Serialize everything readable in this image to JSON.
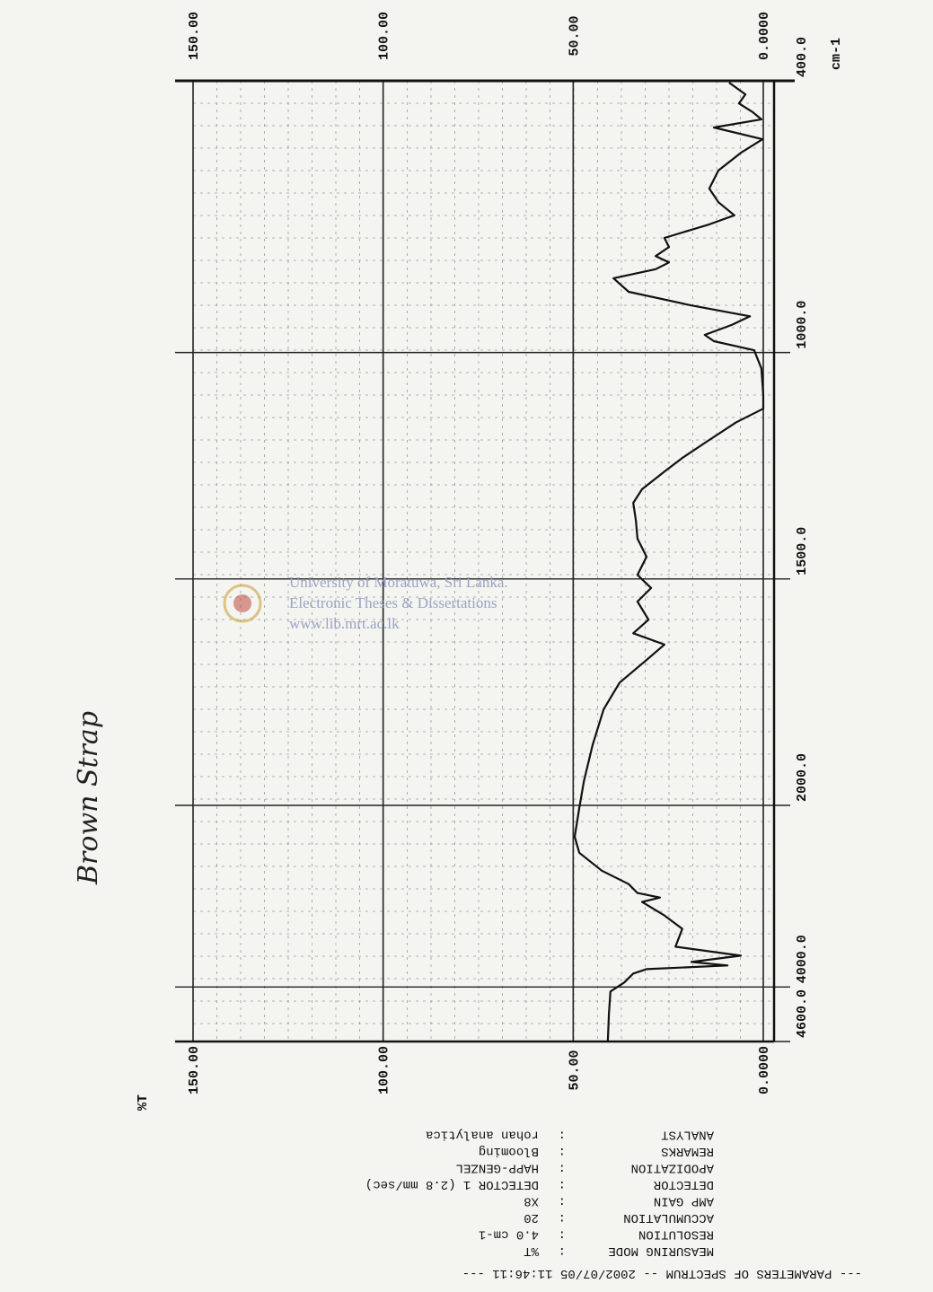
{
  "chart_data": {
    "type": "line",
    "handwritten_title": "Brown Strap",
    "x_unit": "cm-1",
    "y_label": "%T",
    "xlim": [
      400,
      4600
    ],
    "x_break": 2000,
    "ylim": [
      0,
      150
    ],
    "xticks": [
      {
        "value": 400,
        "label": "400.0"
      },
      {
        "value": 1000,
        "label": "1000.0"
      },
      {
        "value": 1500,
        "label": "1500.0"
      },
      {
        "value": 2000,
        "label": "2000.0"
      },
      {
        "value": 4000,
        "label": "4000.0"
      },
      {
        "value": 4600,
        "label": "4600.0"
      }
    ],
    "yticks": [
      {
        "value": 150,
        "label": "150.00"
      },
      {
        "value": 100,
        "label": "100.00"
      },
      {
        "value": 50,
        "label": "50.00"
      },
      {
        "value": 0,
        "label": "0.0000"
      }
    ],
    "grid": true,
    "color": "#111111",
    "x": [
      404,
      430,
      450,
      469,
      485,
      503,
      529,
      559,
      598,
      638,
      668,
      697,
      717,
      747,
      767,
      787,
      801,
      816,
      836,
      866,
      896,
      920,
      939,
      961,
      975,
      995,
      1035,
      1094,
      1124,
      1154,
      1193,
      1233,
      1263,
      1302,
      1332,
      1372,
      1411,
      1451,
      1491,
      1520,
      1550,
      1590,
      1620,
      1645,
      1679,
      1729,
      1788,
      1867,
      1947,
      2030,
      2345,
      2522,
      2719,
      2867,
      2965,
      3015,
      3064,
      3212,
      3359,
      3556,
      3655,
      3724,
      3763,
      3803,
      3852,
      3950,
      4049,
      4295,
      4591
    ],
    "values": [
      9.0,
      4.7,
      6.4,
      2.8,
      0.5,
      13.0,
      0.2,
      5.9,
      11.8,
      14.2,
      11.8,
      7.6,
      14.2,
      26.0,
      24.8,
      28.3,
      24.8,
      28.3,
      39.4,
      35.4,
      18.9,
      3.5,
      8.3,
      15.4,
      13.0,
      2.4,
      0.5,
      0.0,
      0.0,
      7.1,
      14.2,
      21.3,
      26.0,
      31.9,
      34.2,
      33.5,
      33.1,
      30.7,
      33.1,
      29.5,
      33.1,
      30.2,
      34.2,
      26.0,
      30.7,
      37.8,
      42.0,
      44.9,
      47.2,
      48.4,
      49.6,
      48.4,
      42.5,
      35.4,
      33.1,
      27.2,
      31.9,
      26.0,
      21.3,
      23.1,
      5.9,
      18.9,
      9.4,
      30.7,
      34.2,
      36.6,
      40.2,
      40.6,
      40.9
    ]
  },
  "watermark": {
    "line1": "University of Moratuwa, Sri Lanka.",
    "line2": "Electronic Theses & Dissertations",
    "line3": "www.lib.mrt.ac.lk"
  },
  "parameters": {
    "header": "--- PARAMETERS OF SPECTRUM -- 2002/07/05 11:46:11 ---",
    "separator": ":",
    "rows": [
      [
        "MEASURING MODE",
        "%T"
      ],
      [
        "RESOLUTION",
        "4.0 cm-1"
      ],
      [
        "ACCUMULATION",
        "20"
      ],
      [
        "AMP GAIN",
        "X8"
      ],
      [
        "DETECTOR",
        "DETECTOR 1 (2.8 mm/sec)"
      ],
      [
        "APODIZATION",
        "HAPP-GENZEL"
      ],
      [
        "REMARKS",
        "Blooming"
      ],
      [
        "ANALYST",
        "rohan analytica"
      ]
    ]
  }
}
